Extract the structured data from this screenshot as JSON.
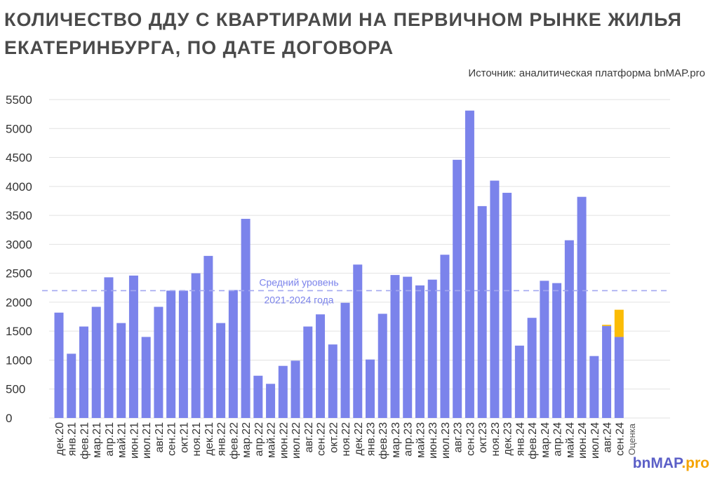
{
  "title": "КОЛИЧЕСТВО ДДУ С КВАРТИРАМИ НА ПЕРВИЧНОМ РЫНКЕ ЖИЛЬЯ ЕКАТЕРИНБУРГА, ПО ДАТЕ ДОГОВОРА",
  "source": "Источник: аналитическая платформа bnMAP.pro",
  "brand": {
    "main": "bnMAP",
    "suffix": ".pro"
  },
  "colors": {
    "bar": "#7b83eb",
    "estimate": "#fbbc05",
    "average_line": "#a3a8f0",
    "grid": "#e2e2e2"
  },
  "chart_data": {
    "type": "bar",
    "stacked": true,
    "grid": true,
    "ylim": [
      0,
      5500
    ],
    "yticks": [
      0,
      500,
      1000,
      1500,
      2000,
      2500,
      3000,
      3500,
      4000,
      4500,
      5000,
      5500
    ],
    "categories": [
      "дек.20",
      "янв.21",
      "фев.21",
      "мар.21",
      "апр.21",
      "май.21",
      "июн.21",
      "июл.21",
      "авг.21",
      "сен.21",
      "окт.21",
      "ноя.21",
      "дек.21",
      "янв.22",
      "фев.22",
      "мар.22",
      "апр.22",
      "май.22",
      "июн.22",
      "июл.22",
      "авг.22",
      "сен.22",
      "окт.22",
      "ноя.22",
      "дек.22",
      "янв.23",
      "фев.23",
      "мар.23",
      "апр.23",
      "май.23",
      "июн.23",
      "июл.23",
      "авг.23",
      "сен.23",
      "окт.23",
      "ноя.23",
      "дек.23",
      "янв.24",
      "фев.24",
      "мар.24",
      "апр.24",
      "май.24",
      "июн.24",
      "июл.24",
      "авг.24",
      "сен.24"
    ],
    "series": [
      {
        "values": [
          1820,
          1110,
          1580,
          1920,
          2430,
          1640,
          2460,
          1400,
          1920,
          2200,
          2200,
          2500,
          2800,
          1640,
          2210,
          3440,
          730,
          590,
          900,
          990,
          1580,
          1790,
          1270,
          1990,
          2650,
          1010,
          1800,
          2470,
          2440,
          2290,
          2390,
          2820,
          4460,
          5310,
          3660,
          4100,
          3890,
          1250,
          1730,
          2370,
          2330,
          3070,
          3820,
          1070,
          1590,
          1400
        ]
      },
      {
        "name": "Оценка",
        "values": [
          0,
          0,
          0,
          0,
          0,
          0,
          0,
          0,
          0,
          0,
          0,
          0,
          0,
          0,
          0,
          0,
          0,
          0,
          0,
          0,
          0,
          0,
          0,
          0,
          0,
          0,
          0,
          0,
          0,
          0,
          0,
          0,
          0,
          0,
          0,
          0,
          0,
          0,
          0,
          0,
          0,
          0,
          0,
          0,
          20,
          470
        ]
      }
    ],
    "average": {
      "value": 2200,
      "label_line1": "Средний уровень",
      "label_line2": "2021-2024 года"
    }
  }
}
